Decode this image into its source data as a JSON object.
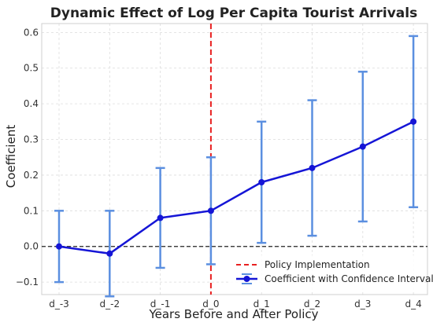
{
  "chart_data": {
    "type": "line",
    "title": "Dynamic Effect of Log Per Capita Tourist Arrivals",
    "xlabel": "Years Before and After Policy",
    "ylabel": "Coefficient",
    "categories": [
      "d_-3",
      "d_-2",
      "d_-1",
      "d_0",
      "d_1",
      "d_2",
      "d_3",
      "d_4"
    ],
    "series": [
      {
        "name": "Coefficient with Confidence Interval",
        "values": [
          0.0,
          -0.02,
          0.08,
          0.1,
          0.18,
          0.22,
          0.28,
          0.35
        ],
        "ci_lower": [
          -0.1,
          -0.14,
          -0.06,
          -0.05,
          0.01,
          0.03,
          0.07,
          0.11
        ],
        "ci_upper": [
          0.1,
          0.1,
          0.22,
          0.25,
          0.35,
          0.41,
          0.49,
          0.59
        ],
        "color": "#1515d6",
        "errorbar_color": "#5b8fe0"
      }
    ],
    "reference_lines": [
      {
        "orientation": "vertical",
        "at": "d_0",
        "name": "Policy Implementation",
        "style": "dashed",
        "color": "#e82020"
      },
      {
        "orientation": "horizontal",
        "at": 0.0,
        "style": "dashed",
        "color": "#222222"
      }
    ],
    "ylim": [
      -0.135,
      0.625
    ],
    "yticks": [
      -0.1,
      0.0,
      0.1,
      0.2,
      0.3,
      0.4,
      0.5,
      0.6
    ],
    "ytick_labels": [
      "−0.1",
      "0.0",
      "0.1",
      "0.2",
      "0.3",
      "0.4",
      "0.5",
      "0.6"
    ],
    "grid": true,
    "legend": {
      "placement": "bottom-right"
    }
  }
}
